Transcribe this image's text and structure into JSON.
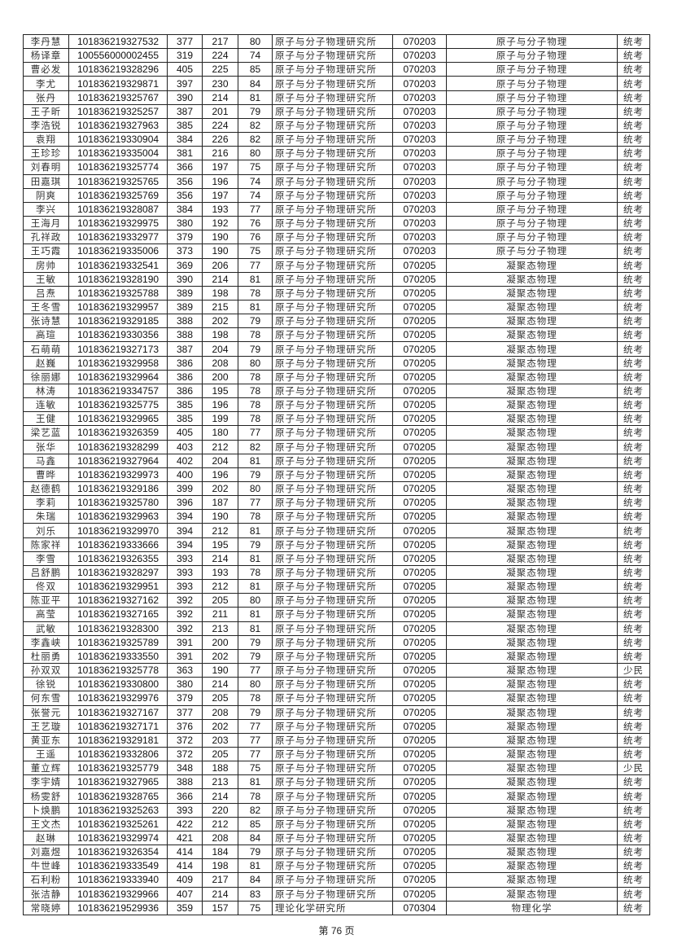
{
  "columns": [
    "name",
    "exam_id",
    "total",
    "subtotal",
    "score",
    "institute",
    "major_code",
    "major",
    "type"
  ],
  "rows": [
    [
      "李丹慧",
      "101836219327532",
      "377",
      "217",
      "80",
      "原子与分子物理研究所",
      "070203",
      "原子与分子物理",
      "统考"
    ],
    [
      "杨译章",
      "100556000002455",
      "319",
      "224",
      "74",
      "原子与分子物理研究所",
      "070203",
      "原子与分子物理",
      "统考"
    ],
    [
      "曹必发",
      "101836219328296",
      "405",
      "225",
      "85",
      "原子与分子物理研究所",
      "070203",
      "原子与分子物理",
      "统考"
    ],
    [
      "李尤",
      "101836219329871",
      "397",
      "230",
      "84",
      "原子与分子物理研究所",
      "070203",
      "原子与分子物理",
      "统考"
    ],
    [
      "张丹",
      "101836219325767",
      "390",
      "214",
      "81",
      "原子与分子物理研究所",
      "070203",
      "原子与分子物理",
      "统考"
    ],
    [
      "王子昕",
      "101836219325257",
      "387",
      "201",
      "79",
      "原子与分子物理研究所",
      "070203",
      "原子与分子物理",
      "统考"
    ],
    [
      "李浩锐",
      "101836219327963",
      "385",
      "224",
      "82",
      "原子与分子物理研究所",
      "070203",
      "原子与分子物理",
      "统考"
    ],
    [
      "袁翔",
      "101836219330904",
      "384",
      "226",
      "82",
      "原子与分子物理研究所",
      "070203",
      "原子与分子物理",
      "统考"
    ],
    [
      "王珍珍",
      "101836219335004",
      "381",
      "216",
      "80",
      "原子与分子物理研究所",
      "070203",
      "原子与分子物理",
      "统考"
    ],
    [
      "刘春明",
      "101836219325774",
      "366",
      "197",
      "75",
      "原子与分子物理研究所",
      "070203",
      "原子与分子物理",
      "统考"
    ],
    [
      "田嘉琪",
      "101836219325765",
      "356",
      "196",
      "74",
      "原子与分子物理研究所",
      "070203",
      "原子与分子物理",
      "统考"
    ],
    [
      "阴爽",
      "101836219325769",
      "356",
      "197",
      "74",
      "原子与分子物理研究所",
      "070203",
      "原子与分子物理",
      "统考"
    ],
    [
      "李兴",
      "101836219328087",
      "384",
      "193",
      "77",
      "原子与分子物理研究所",
      "070203",
      "原子与分子物理",
      "统考"
    ],
    [
      "王海月",
      "101836219329975",
      "380",
      "192",
      "76",
      "原子与分子物理研究所",
      "070203",
      "原子与分子物理",
      "统考"
    ],
    [
      "孔祥政",
      "101836219332977",
      "379",
      "190",
      "76",
      "原子与分子物理研究所",
      "070203",
      "原子与分子物理",
      "统考"
    ],
    [
      "王巧霞",
      "101836219335006",
      "373",
      "190",
      "75",
      "原子与分子物理研究所",
      "070203",
      "原子与分子物理",
      "统考"
    ],
    [
      "房帅",
      "101836219332541",
      "369",
      "206",
      "77",
      "原子与分子物理研究所",
      "070205",
      "凝聚态物理",
      "统考"
    ],
    [
      "王敏",
      "101836219328190",
      "390",
      "214",
      "81",
      "原子与分子物理研究所",
      "070205",
      "凝聚态物理",
      "统考"
    ],
    [
      "吕焘",
      "101836219325788",
      "389",
      "198",
      "78",
      "原子与分子物理研究所",
      "070205",
      "凝聚态物理",
      "统考"
    ],
    [
      "王冬雪",
      "101836219329957",
      "389",
      "215",
      "81",
      "原子与分子物理研究所",
      "070205",
      "凝聚态物理",
      "统考"
    ],
    [
      "张诗慧",
      "101836219329185",
      "388",
      "202",
      "79",
      "原子与分子物理研究所",
      "070205",
      "凝聚态物理",
      "统考"
    ],
    [
      "高瑄",
      "101836219330356",
      "388",
      "198",
      "78",
      "原子与分子物理研究所",
      "070205",
      "凝聚态物理",
      "统考"
    ],
    [
      "石萌萌",
      "101836219327173",
      "387",
      "204",
      "79",
      "原子与分子物理研究所",
      "070205",
      "凝聚态物理",
      "统考"
    ],
    [
      "赵巍",
      "101836219329958",
      "386",
      "208",
      "80",
      "原子与分子物理研究所",
      "070205",
      "凝聚态物理",
      "统考"
    ],
    [
      "徐丽娜",
      "101836219329964",
      "386",
      "200",
      "78",
      "原子与分子物理研究所",
      "070205",
      "凝聚态物理",
      "统考"
    ],
    [
      "林涛",
      "101836219334757",
      "386",
      "195",
      "78",
      "原子与分子物理研究所",
      "070205",
      "凝聚态物理",
      "统考"
    ],
    [
      "连敏",
      "101836219325775",
      "385",
      "196",
      "78",
      "原子与分子物理研究所",
      "070205",
      "凝聚态物理",
      "统考"
    ],
    [
      "王健",
      "101836219329965",
      "385",
      "199",
      "78",
      "原子与分子物理研究所",
      "070205",
      "凝聚态物理",
      "统考"
    ],
    [
      "梁艺蓝",
      "101836219326359",
      "405",
      "180",
      "77",
      "原子与分子物理研究所",
      "070205",
      "凝聚态物理",
      "统考"
    ],
    [
      "张华",
      "101836219328299",
      "403",
      "212",
      "82",
      "原子与分子物理研究所",
      "070205",
      "凝聚态物理",
      "统考"
    ],
    [
      "马鑫",
      "101836219327964",
      "402",
      "204",
      "81",
      "原子与分子物理研究所",
      "070205",
      "凝聚态物理",
      "统考"
    ],
    [
      "曹晔",
      "101836219329973",
      "400",
      "196",
      "79",
      "原子与分子物理研究所",
      "070205",
      "凝聚态物理",
      "统考"
    ],
    [
      "赵德鹤",
      "101836219329186",
      "399",
      "202",
      "80",
      "原子与分子物理研究所",
      "070205",
      "凝聚态物理",
      "统考"
    ],
    [
      "李莉",
      "101836219325780",
      "396",
      "187",
      "77",
      "原子与分子物理研究所",
      "070205",
      "凝聚态物理",
      "统考"
    ],
    [
      "朱瑞",
      "101836219329963",
      "394",
      "190",
      "78",
      "原子与分子物理研究所",
      "070205",
      "凝聚态物理",
      "统考"
    ],
    [
      "刘乐",
      "101836219329970",
      "394",
      "212",
      "81",
      "原子与分子物理研究所",
      "070205",
      "凝聚态物理",
      "统考"
    ],
    [
      "陈家祥",
      "101836219333666",
      "394",
      "195",
      "79",
      "原子与分子物理研究所",
      "070205",
      "凝聚态物理",
      "统考"
    ],
    [
      "李雪",
      "101836219326355",
      "393",
      "214",
      "81",
      "原子与分子物理研究所",
      "070205",
      "凝聚态物理",
      "统考"
    ],
    [
      "吕舒鹏",
      "101836219328297",
      "393",
      "193",
      "78",
      "原子与分子物理研究所",
      "070205",
      "凝聚态物理",
      "统考"
    ],
    [
      "佟双",
      "101836219329951",
      "393",
      "212",
      "81",
      "原子与分子物理研究所",
      "070205",
      "凝聚态物理",
      "统考"
    ],
    [
      "陈亚平",
      "101836219327162",
      "392",
      "205",
      "80",
      "原子与分子物理研究所",
      "070205",
      "凝聚态物理",
      "统考"
    ],
    [
      "高莹",
      "101836219327165",
      "392",
      "211",
      "81",
      "原子与分子物理研究所",
      "070205",
      "凝聚态物理",
      "统考"
    ],
    [
      "武敏",
      "101836219328300",
      "392",
      "213",
      "81",
      "原子与分子物理研究所",
      "070205",
      "凝聚态物理",
      "统考"
    ],
    [
      "李鑫峡",
      "101836219325789",
      "391",
      "200",
      "79",
      "原子与分子物理研究所",
      "070205",
      "凝聚态物理",
      "统考"
    ],
    [
      "杜丽勇",
      "101836219333550",
      "391",
      "202",
      "79",
      "原子与分子物理研究所",
      "070205",
      "凝聚态物理",
      "统考"
    ],
    [
      "孙双双",
      "101836219325778",
      "363",
      "190",
      "77",
      "原子与分子物理研究所",
      "070205",
      "凝聚态物理",
      "少民"
    ],
    [
      "徐锐",
      "101836219330800",
      "380",
      "214",
      "80",
      "原子与分子物理研究所",
      "070205",
      "凝聚态物理",
      "统考"
    ],
    [
      "何东雪",
      "101836219329976",
      "379",
      "205",
      "78",
      "原子与分子物理研究所",
      "070205",
      "凝聚态物理",
      "统考"
    ],
    [
      "张誉元",
      "101836219327167",
      "377",
      "208",
      "79",
      "原子与分子物理研究所",
      "070205",
      "凝聚态物理",
      "统考"
    ],
    [
      "王艺璇",
      "101836219327171",
      "376",
      "202",
      "77",
      "原子与分子物理研究所",
      "070205",
      "凝聚态物理",
      "统考"
    ],
    [
      "黄亚东",
      "101836219329181",
      "372",
      "203",
      "77",
      "原子与分子物理研究所",
      "070205",
      "凝聚态物理",
      "统考"
    ],
    [
      "王遥",
      "101836219332806",
      "372",
      "205",
      "77",
      "原子与分子物理研究所",
      "070205",
      "凝聚态物理",
      "统考"
    ],
    [
      "董立辉",
      "101836219325779",
      "348",
      "188",
      "75",
      "原子与分子物理研究所",
      "070205",
      "凝聚态物理",
      "少民"
    ],
    [
      "李宇婧",
      "101836219327965",
      "388",
      "213",
      "81",
      "原子与分子物理研究所",
      "070205",
      "凝聚态物理",
      "统考"
    ],
    [
      "杨雯舒",
      "101836219328765",
      "366",
      "214",
      "78",
      "原子与分子物理研究所",
      "070205",
      "凝聚态物理",
      "统考"
    ],
    [
      "卜焕鹏",
      "101836219325263",
      "393",
      "220",
      "82",
      "原子与分子物理研究所",
      "070205",
      "凝聚态物理",
      "统考"
    ],
    [
      "王文杰",
      "101836219325261",
      "422",
      "212",
      "85",
      "原子与分子物理研究所",
      "070205",
      "凝聚态物理",
      "统考"
    ],
    [
      "赵琳",
      "101836219329974",
      "421",
      "208",
      "84",
      "原子与分子物理研究所",
      "070205",
      "凝聚态物理",
      "统考"
    ],
    [
      "刘嘉煜",
      "101836219326354",
      "414",
      "184",
      "79",
      "原子与分子物理研究所",
      "070205",
      "凝聚态物理",
      "统考"
    ],
    [
      "牛世峰",
      "101836219333549",
      "414",
      "198",
      "81",
      "原子与分子物理研究所",
      "070205",
      "凝聚态物理",
      "统考"
    ],
    [
      "石利粉",
      "101836219333940",
      "409",
      "217",
      "84",
      "原子与分子物理研究所",
      "070205",
      "凝聚态物理",
      "统考"
    ],
    [
      "张洁静",
      "101836219329966",
      "407",
      "214",
      "83",
      "原子与分子物理研究所",
      "070205",
      "凝聚态物理",
      "统考"
    ],
    [
      "常晓婷",
      "101836219529936",
      "359",
      "157",
      "75",
      "理论化学研究所",
      "070304",
      "物理化学",
      "统考"
    ]
  ],
  "footer": {
    "page_label": "第 76 页"
  }
}
